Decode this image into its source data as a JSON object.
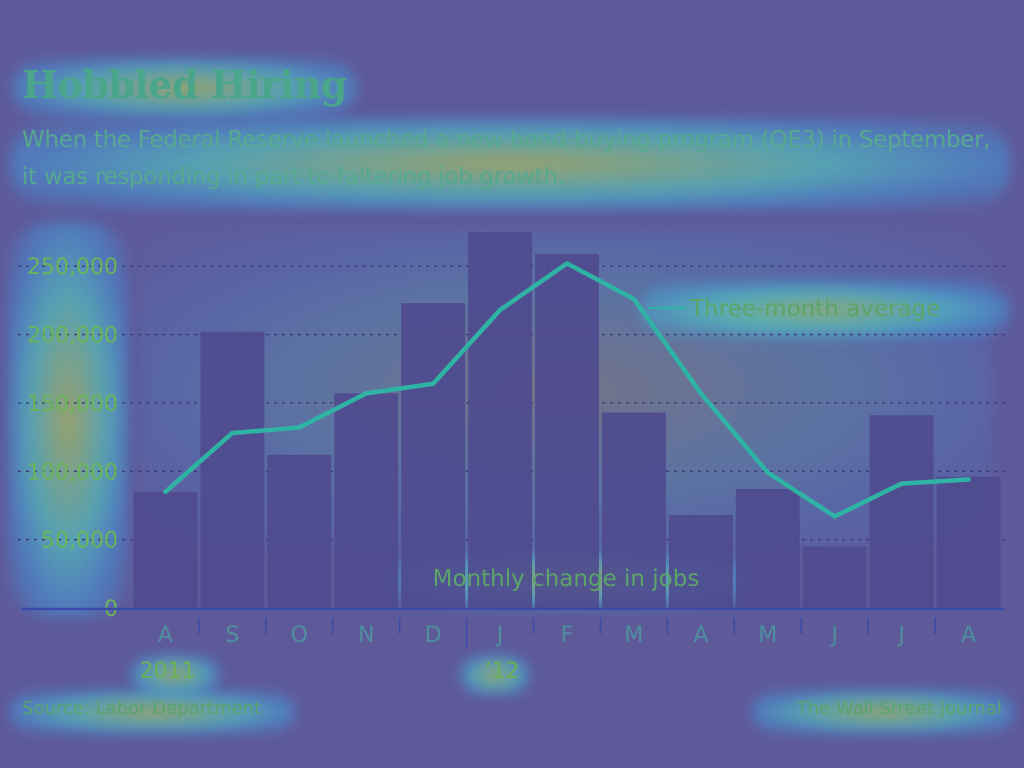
{
  "title": "Hobbled Hiring",
  "subtitle": "When the Federal Reserve launched a new bond-buying program (QE3) in September, it was responding in part to faltering job growth.",
  "source": "Source: Labor Department",
  "credit": "The Wall Street Journal",
  "chart_data": {
    "type": "bar",
    "categories": [
      "A",
      "S",
      "O",
      "N",
      "D",
      "J",
      "F",
      "M",
      "A",
      "M",
      "J",
      "J",
      "A"
    ],
    "year_labels": [
      {
        "category_index": 0,
        "label": "2011"
      },
      {
        "category_index": 5,
        "label": "’12"
      }
    ],
    "series": [
      {
        "name": "Monthly change in jobs",
        "type": "bar",
        "values": [
          85000,
          202000,
          112000,
          157000,
          223000,
          275000,
          259000,
          143000,
          68000,
          87000,
          45000,
          141000,
          96000
        ]
      },
      {
        "name": "Three-month average",
        "type": "line",
        "values": [
          85000,
          128000,
          132000,
          157000,
          164000,
          218000,
          252000,
          226000,
          157000,
          99000,
          67000,
          91000,
          94000
        ]
      }
    ],
    "yticks": [
      0,
      50000,
      100000,
      150000,
      200000,
      250000
    ],
    "ytick_labels": [
      "0",
      "50,000",
      "100,000",
      "150,000",
      "200,000",
      "250,000"
    ],
    "ylim": [
      0,
      275000
    ],
    "grid": true,
    "colors": {
      "bar": "#4f4a8e",
      "line": "#2fb3a4",
      "grid": "#3d3a78",
      "axis": "#3a4aa8"
    }
  }
}
